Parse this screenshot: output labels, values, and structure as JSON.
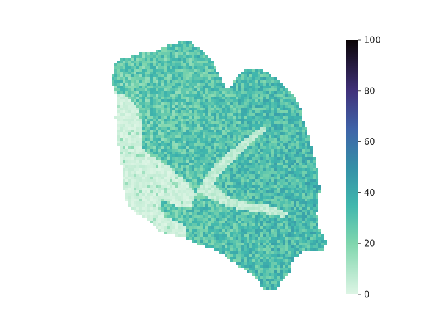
{
  "chart_data": {
    "type": "heatmap",
    "title": "",
    "xlabel": "",
    "ylabel": "",
    "colorbar": {
      "min": 0,
      "max": 100,
      "ticks": [
        {
          "value": 0,
          "label": "0"
        },
        {
          "value": 20,
          "label": "20"
        },
        {
          "value": 40,
          "label": "40"
        },
        {
          "value": 60,
          "label": "60"
        },
        {
          "value": 80,
          "label": "80"
        },
        {
          "value": 100,
          "label": "100"
        }
      ],
      "colormap_stops": [
        {
          "t": 0.0,
          "color": "#def5e5"
        },
        {
          "t": 0.2,
          "color": "#7fd6ad"
        },
        {
          "t": 0.35,
          "color": "#40b7ad"
        },
        {
          "t": 0.5,
          "color": "#348fa7"
        },
        {
          "t": 0.65,
          "color": "#3f63a8"
        },
        {
          "t": 0.8,
          "color": "#40317a"
        },
        {
          "t": 1.0,
          "color": "#0b0405"
        }
      ]
    },
    "regions": [
      {
        "name": "watershed",
        "typical_value": 30,
        "spread": 12
      },
      {
        "name": "low-value western lobe",
        "typical_value": 3,
        "spread": 3
      },
      {
        "name": "stream channel",
        "typical_value": 6,
        "spread": 4
      }
    ],
    "value_range_in_map": [
      0,
      45
    ],
    "grid": false
  }
}
